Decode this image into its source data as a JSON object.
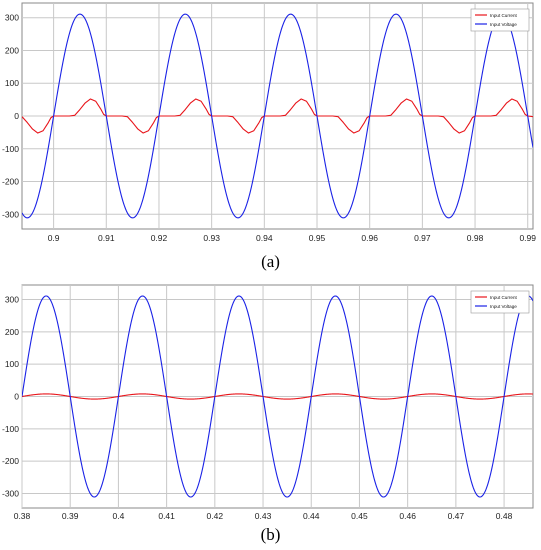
{
  "chart_data": [
    {
      "id": "a",
      "type": "line",
      "caption": "(a)",
      "xlim": [
        0.894,
        0.991
      ],
      "ylim": [
        -345,
        345
      ],
      "xticks": [
        0.9,
        0.91,
        0.92,
        0.93,
        0.94,
        0.95,
        0.96,
        0.97,
        0.98,
        0.99
      ],
      "xtick_labels": [
        "0.9",
        "0.91",
        "0.92",
        "0.93",
        "0.94",
        "0.95",
        "0.96",
        "0.97",
        "0.98",
        "0.99"
      ],
      "yticks": [
        -300,
        -200,
        -100,
        0,
        100,
        200,
        300
      ],
      "ytick_labels": [
        "-300",
        "-200",
        "-100",
        "0",
        "100",
        "200",
        "300"
      ],
      "grid": true,
      "legend_position": "top-right",
      "series": [
        {
          "name": "Input Current",
          "color": "#e8141a",
          "description": "pulsed current, conducts only near voltage peaks (diode rectifier)",
          "x": [
            0.894,
            0.895,
            0.896,
            0.897,
            0.898,
            0.899,
            0.8995,
            0.9,
            0.901,
            0.902,
            0.903,
            0.904,
            0.905,
            0.906,
            0.907,
            0.908,
            0.909,
            0.9095,
            0.91,
            0.911,
            0.912,
            0.913,
            0.914,
            0.915,
            0.916,
            0.917,
            0.918,
            0.919,
            0.9195,
            0.92,
            0.921,
            0.922,
            0.923,
            0.924,
            0.925,
            0.926,
            0.927,
            0.928,
            0.929,
            0.9295,
            0.93,
            0.931,
            0.932,
            0.933,
            0.934,
            0.935,
            0.936,
            0.937,
            0.938,
            0.939,
            0.9395,
            0.94,
            0.941,
            0.942,
            0.943,
            0.944,
            0.945,
            0.946,
            0.947,
            0.948,
            0.949,
            0.9495,
            0.95,
            0.951,
            0.952,
            0.953,
            0.954,
            0.955,
            0.956,
            0.957,
            0.958,
            0.959,
            0.9595,
            0.96,
            0.961,
            0.962,
            0.963,
            0.964,
            0.965,
            0.966,
            0.967,
            0.968,
            0.969,
            0.9695,
            0.97,
            0.971,
            0.972,
            0.973,
            0.974,
            0.975,
            0.976,
            0.977,
            0.978,
            0.979,
            0.9795,
            0.98,
            0.981,
            0.982,
            0.983,
            0.984,
            0.985,
            0.986,
            0.987,
            0.988,
            0.989,
            0.9895,
            0.99,
            0.991
          ],
          "y": [
            -2,
            -20,
            -40,
            -52,
            -45,
            -20,
            -5,
            0,
            0,
            0,
            0,
            2,
            20,
            40,
            52,
            45,
            20,
            5,
            0,
            0,
            0,
            0,
            -2,
            -20,
            -40,
            -52,
            -45,
            -20,
            -5,
            0,
            0,
            0,
            0,
            2,
            20,
            40,
            52,
            45,
            20,
            5,
            0,
            0,
            0,
            0,
            -2,
            -20,
            -40,
            -52,
            -45,
            -20,
            -5,
            0,
            0,
            0,
            0,
            2,
            20,
            40,
            52,
            45,
            20,
            5,
            0,
            0,
            0,
            0,
            -2,
            -20,
            -40,
            -52,
            -45,
            -20,
            -5,
            0,
            0,
            0,
            0,
            2,
            20,
            40,
            52,
            45,
            20,
            5,
            0,
            0,
            0,
            0,
            -2,
            -20,
            -40,
            -52,
            -45,
            -20,
            -5,
            0,
            0,
            0,
            0,
            2,
            20,
            40,
            52,
            45,
            20,
            5,
            0,
            -2
          ]
        },
        {
          "name": "Input Voltage",
          "color": "#1a22e6",
          "description": "sinusoid, amplitude ~311 V, 50 Hz, peaks at 0.905 + 0.02k",
          "amplitude": 311,
          "period": 0.02,
          "peak_at": 0.905
        }
      ]
    },
    {
      "id": "b",
      "type": "line",
      "caption": "(b)",
      "xlim": [
        0.38,
        0.486
      ],
      "ylim": [
        -345,
        345
      ],
      "xticks": [
        0.38,
        0.39,
        0.4,
        0.41,
        0.42,
        0.43,
        0.44,
        0.45,
        0.46,
        0.47,
        0.48
      ],
      "xtick_labels": [
        "0.38",
        "0.39",
        "0.4",
        "0.41",
        "0.42",
        "0.43",
        "0.44",
        "0.45",
        "0.46",
        "0.47",
        "0.48"
      ],
      "yticks": [
        -300,
        -200,
        -100,
        0,
        100,
        200,
        300
      ],
      "ytick_labels": [
        "-300",
        "-200",
        "-100",
        "0",
        "100",
        "200",
        "300"
      ],
      "grid": true,
      "legend_position": "top-right",
      "series": [
        {
          "name": "Input Current",
          "color": "#e8141a",
          "description": "small sinusoid in phase with voltage, amplitude ~8",
          "amplitude": 8,
          "period": 0.02,
          "peak_at": 0.385
        },
        {
          "name": "Input Voltage",
          "color": "#1a22e6",
          "description": "sinusoid, amplitude ~311 V, 50 Hz, peaks at 0.385 + 0.02k",
          "amplitude": 311,
          "period": 0.02,
          "peak_at": 0.385
        }
      ]
    }
  ]
}
